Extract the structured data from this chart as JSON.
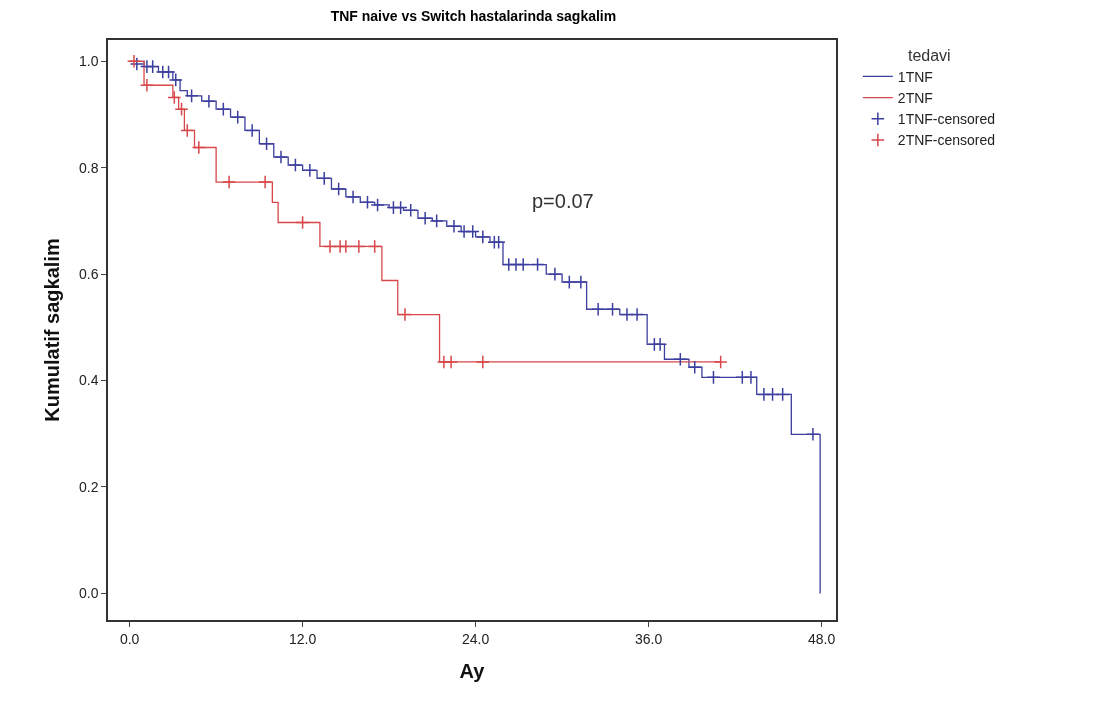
{
  "chart_data": {
    "type": "step",
    "title": "TNF naive vs Switch hastalarinda sagkalim",
    "xlabel": "Ay",
    "ylabel": "Kumulatif sagkalim",
    "legend_title": "tedavi",
    "legend": "top right",
    "grid": false,
    "annotations": [
      "p=0.07"
    ],
    "xlim": [
      -1.5,
      49
    ],
    "xticks": [
      {
        "value": 0,
        "label": "0.0"
      },
      {
        "value": 12,
        "label": "12.0"
      },
      {
        "value": 24,
        "label": "24.0"
      },
      {
        "value": 36,
        "label": "36.0"
      },
      {
        "value": 48,
        "label": "48.0"
      }
    ],
    "ylim": [
      -0.05,
      1.04
    ],
    "yticks": [
      {
        "value": 0,
        "label": "0.0"
      },
      {
        "value": 0.2,
        "label": "0.2"
      },
      {
        "value": 0.4,
        "label": "0.4"
      },
      {
        "value": 0.6,
        "label": "0.6"
      },
      {
        "value": 0.8,
        "label": "0.8"
      },
      {
        "value": 1,
        "label": "1.0"
      }
    ],
    "series": [
      {
        "name": "1TNF",
        "color": "#3c3f9e",
        "marker": "none",
        "x": [
          0,
          1,
          2,
          3,
          3.5,
          4,
          5,
          6,
          7,
          8,
          9,
          10,
          11,
          12,
          13,
          14,
          15,
          16,
          17,
          18,
          19,
          20,
          21,
          22,
          23,
          24,
          25,
          25.9,
          28.9,
          30,
          31.7,
          34,
          35.9,
          37.1,
          38.8,
          39.7,
          43.5,
          45.9,
          47.9
        ],
        "values": [
          1,
          0.99,
          0.98,
          0.965,
          0.945,
          0.935,
          0.925,
          0.91,
          0.895,
          0.87,
          0.845,
          0.82,
          0.805,
          0.795,
          0.78,
          0.76,
          0.745,
          0.735,
          0.73,
          0.725,
          0.72,
          0.705,
          0.7,
          0.69,
          0.68,
          0.67,
          0.66,
          0.618,
          0.6,
          0.585,
          0.534,
          0.524,
          0.468,
          0.44,
          0.425,
          0.406,
          0.374,
          0.299,
          0
        ]
      },
      {
        "name": "2TNF",
        "color": "#d8474a",
        "marker": "none",
        "x": [
          0,
          1,
          3,
          3.4,
          3.8,
          4.5,
          6,
          9.9,
          10.3,
          13.2,
          17.5,
          18.6,
          21.5,
          41
        ],
        "values": [
          1,
          0.955,
          0.932,
          0.91,
          0.87,
          0.838,
          0.773,
          0.735,
          0.697,
          0.652,
          0.588,
          0.524,
          0.435,
          0.435
        ]
      },
      {
        "name": "1TNF-censored",
        "type": "scatter",
        "color": "#3c3f9e",
        "marker": "cross",
        "x": [
          0.5,
          1.2,
          1.6,
          2.3,
          2.7,
          3.2,
          4.3,
          5.5,
          6.5,
          7.5,
          8.5,
          9.5,
          10.5,
          11.5,
          12.5,
          13.5,
          14.5,
          15.5,
          16.5,
          17.2,
          18.3,
          18.8,
          19.5,
          20.5,
          21.3,
          22.5,
          23.2,
          23.8,
          24.5,
          25.3,
          25.6,
          26.3,
          26.8,
          27.3,
          28.3,
          29.5,
          30.5,
          31.3,
          32.5,
          33.5,
          34.5,
          35.2,
          36.4,
          36.8,
          38.2,
          39.2,
          40.5,
          42.5,
          43.1,
          44,
          44.6,
          45.3,
          47.4
        ],
        "values": [
          0.995,
          0.99,
          0.99,
          0.98,
          0.98,
          0.965,
          0.935,
          0.925,
          0.91,
          0.895,
          0.87,
          0.845,
          0.82,
          0.805,
          0.795,
          0.78,
          0.76,
          0.745,
          0.735,
          0.73,
          0.725,
          0.725,
          0.72,
          0.705,
          0.7,
          0.69,
          0.68,
          0.68,
          0.67,
          0.66,
          0.66,
          0.618,
          0.618,
          0.618,
          0.618,
          0.6,
          0.585,
          0.585,
          0.534,
          0.534,
          0.524,
          0.524,
          0.468,
          0.468,
          0.44,
          0.425,
          0.406,
          0.406,
          0.406,
          0.374,
          0.374,
          0.374,
          0.299
        ]
      },
      {
        "name": "2TNF-censored",
        "type": "scatter",
        "color": "#d8474a",
        "marker": "cross",
        "x": [
          0.3,
          1.2,
          3.1,
          3.6,
          4,
          4.8,
          6.9,
          9.4,
          12,
          13.9,
          14.6,
          15,
          15.9,
          17,
          19.1,
          21.8,
          22.3,
          24.5,
          41
        ],
        "values": [
          1,
          0.955,
          0.932,
          0.91,
          0.87,
          0.838,
          0.773,
          0.773,
          0.697,
          0.652,
          0.652,
          0.652,
          0.652,
          0.652,
          0.524,
          0.435,
          0.435,
          0.435,
          0.435
        ]
      }
    ]
  }
}
